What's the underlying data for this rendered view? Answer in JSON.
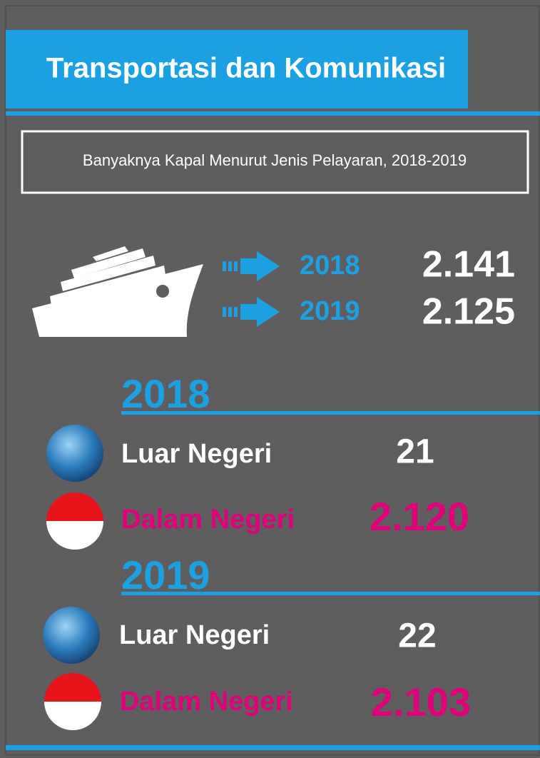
{
  "header": {
    "title": "Transportasi dan Komunikasi"
  },
  "subtitle": "Banyaknya Kapal Menurut Jenis Pelayaran, 2018-2019",
  "summary": [
    {
      "year": "2018",
      "value": "2.141"
    },
    {
      "year": "2019",
      "value": "2.125"
    }
  ],
  "sections": [
    {
      "year": "2018",
      "items": [
        {
          "label": "Luar Negeri",
          "value": "21"
        },
        {
          "label": "Dalam Negeri",
          "value": "2.120"
        }
      ]
    },
    {
      "year": "2019",
      "items": [
        {
          "label": "Luar Negeri",
          "value": "22"
        },
        {
          "label": "Dalam Negeri",
          "value": "2.103"
        }
      ]
    }
  ]
}
